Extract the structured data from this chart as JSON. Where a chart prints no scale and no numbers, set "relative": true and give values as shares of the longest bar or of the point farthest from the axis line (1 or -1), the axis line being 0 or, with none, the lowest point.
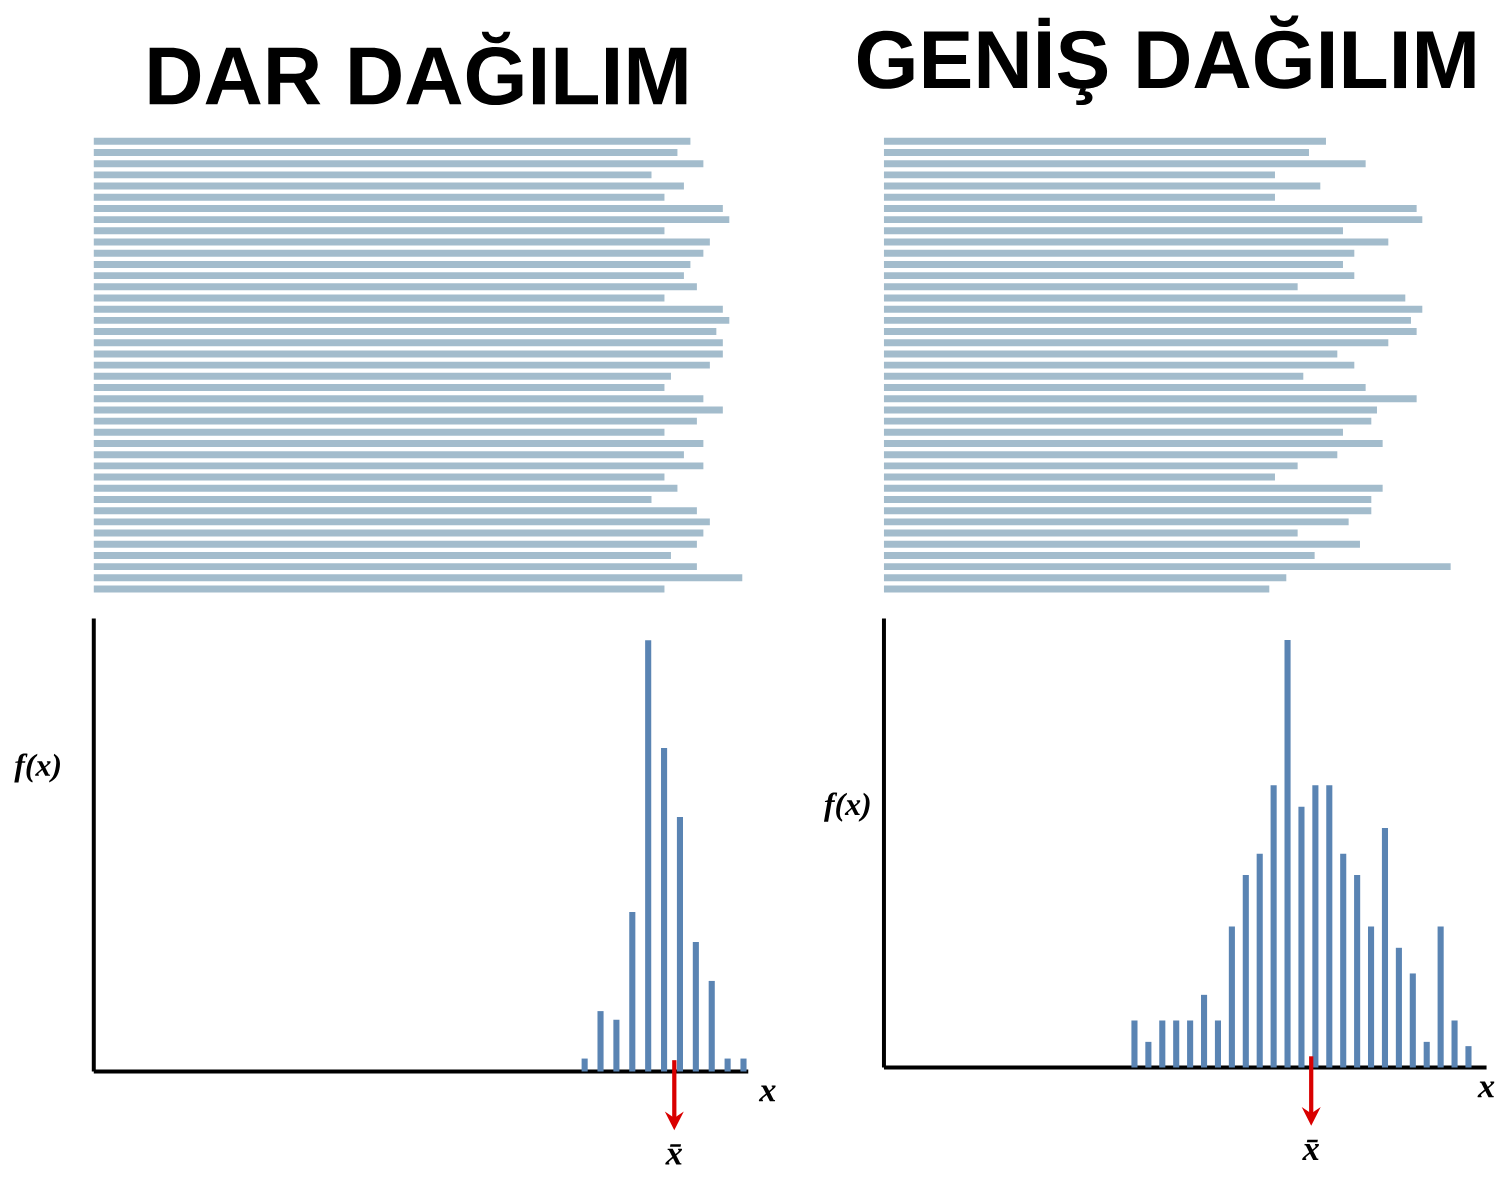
{
  "chart_data": [
    {
      "type": "bar",
      "orientation": "horizontal",
      "relative": true,
      "title": "DAR DAĞILIM",
      "color": "#a3bccc",
      "categories": [
        null,
        null,
        null,
        null,
        null,
        null,
        null,
        null,
        null,
        null,
        null,
        null,
        null,
        null,
        null,
        null,
        null,
        null,
        null,
        null,
        null,
        null,
        null,
        null,
        null,
        null,
        null,
        null,
        null,
        null,
        null,
        null,
        null,
        null,
        null,
        null,
        null,
        null,
        null,
        null,
        null
      ],
      "values": [
        0.92,
        0.9,
        0.94,
        0.86,
        0.91,
        0.88,
        0.97,
        0.98,
        0.88,
        0.95,
        0.94,
        0.92,
        0.91,
        0.93,
        0.88,
        0.97,
        0.98,
        0.96,
        0.97,
        0.97,
        0.95,
        0.89,
        0.88,
        0.94,
        0.97,
        0.93,
        0.88,
        0.94,
        0.91,
        0.94,
        0.88,
        0.9,
        0.86,
        0.93,
        0.95,
        0.94,
        0.93,
        0.89,
        0.93,
        1,
        0.88
      ]
    },
    {
      "type": "bar",
      "orientation": "horizontal",
      "relative": true,
      "title": "GENİŞ DAĞILIM",
      "color": "#a3bccc",
      "categories": [
        null,
        null,
        null,
        null,
        null,
        null,
        null,
        null,
        null,
        null,
        null,
        null,
        null,
        null,
        null,
        null,
        null,
        null,
        null,
        null,
        null,
        null,
        null,
        null,
        null,
        null,
        null,
        null,
        null,
        null,
        null,
        null,
        null,
        null,
        null,
        null,
        null,
        null,
        null,
        null,
        null
      ],
      "values": [
        0.78,
        0.75,
        0.85,
        0.69,
        0.77,
        0.69,
        0.94,
        0.95,
        0.81,
        0.89,
        0.83,
        0.81,
        0.83,
        0.73,
        0.92,
        0.95,
        0.93,
        0.94,
        0.89,
        0.8,
        0.83,
        0.74,
        0.85,
        0.94,
        0.87,
        0.86,
        0.81,
        0.88,
        0.8,
        0.73,
        0.69,
        0.88,
        0.86,
        0.86,
        0.82,
        0.73,
        0.84,
        0.76,
        1,
        0.71,
        0.68
      ]
    },
    {
      "type": "bar",
      "relative": true,
      "xlabel": "x",
      "ylabel": "f(x)",
      "color": "#5a84b3",
      "annotations": [
        "x̄"
      ],
      "categories": [
        null,
        null,
        null,
        null,
        null,
        null,
        null,
        null,
        null,
        null,
        null
      ],
      "values": [
        0.03,
        0.14,
        0.12,
        0.37,
        1,
        0.75,
        0.59,
        0.3,
        0.21,
        0.03,
        0.03
      ]
    },
    {
      "type": "bar",
      "relative": true,
      "xlabel": "x",
      "ylabel": "f(x)",
      "color": "#5a84b3",
      "annotations": [
        "x̄"
      ],
      "categories": [
        null,
        null,
        null,
        null,
        null,
        null,
        null,
        null,
        null,
        null,
        null,
        null,
        null,
        null,
        null,
        null,
        null,
        null,
        null,
        null,
        null,
        null,
        null,
        null,
        null
      ],
      "values": [
        0.11,
        0.06,
        0.11,
        0.11,
        0.11,
        0.17,
        0.11,
        0.33,
        0.45,
        0.5,
        0.66,
        1,
        0.61,
        0.66,
        0.66,
        0.5,
        0.45,
        0.33,
        0.56,
        0.28,
        0.22,
        0.06,
        0.33,
        0.11,
        0.05
      ]
    }
  ]
}
